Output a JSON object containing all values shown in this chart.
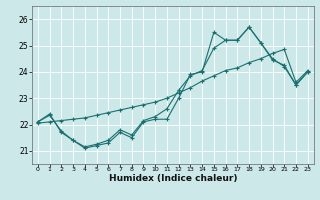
{
  "xlabel": "Humidex (Indice chaleur)",
  "bg_color": "#cce8e8",
  "line_color": "#1a7070",
  "grid_color": "#ffffff",
  "xlim": [
    -0.5,
    23.5
  ],
  "ylim": [
    20.5,
    26.5
  ],
  "yticks": [
    21,
    22,
    23,
    24,
    25,
    26
  ],
  "xticks": [
    0,
    1,
    2,
    3,
    4,
    5,
    6,
    7,
    8,
    9,
    10,
    11,
    12,
    13,
    14,
    15,
    16,
    17,
    18,
    19,
    20,
    21,
    22,
    23
  ],
  "line1_x": [
    0,
    1,
    2,
    3,
    4,
    5,
    6,
    7,
    8,
    9,
    10,
    11,
    12,
    13,
    14,
    15,
    16,
    17,
    18,
    19,
    20,
    21,
    22,
    23
  ],
  "line1_y": [
    22.1,
    22.4,
    21.7,
    21.4,
    21.1,
    21.2,
    21.3,
    21.7,
    21.5,
    22.1,
    22.2,
    22.2,
    23.0,
    23.9,
    24.0,
    25.5,
    25.2,
    25.2,
    25.7,
    25.1,
    24.5,
    24.2,
    23.5,
    24.0
  ],
  "line2_x": [
    0,
    1,
    2,
    3,
    4,
    5,
    6,
    7,
    8,
    9,
    10,
    11,
    12,
    13,
    14,
    15,
    16,
    17,
    18,
    19,
    20,
    21,
    22,
    23
  ],
  "line2_y": [
    22.1,
    22.35,
    21.75,
    21.4,
    21.15,
    21.25,
    21.4,
    21.8,
    21.6,
    22.15,
    22.3,
    22.6,
    23.3,
    23.85,
    24.05,
    24.9,
    25.2,
    25.2,
    25.7,
    25.1,
    24.45,
    24.25,
    23.5,
    24.0
  ],
  "line3_x": [
    0,
    1,
    2,
    3,
    4,
    5,
    6,
    7,
    8,
    9,
    10,
    11,
    12,
    13,
    14,
    15,
    16,
    17,
    18,
    19,
    20,
    21,
    22,
    23
  ],
  "line3_y": [
    22.05,
    22.1,
    22.15,
    22.2,
    22.25,
    22.35,
    22.45,
    22.55,
    22.65,
    22.75,
    22.85,
    23.0,
    23.2,
    23.4,
    23.65,
    23.85,
    24.05,
    24.15,
    24.35,
    24.5,
    24.7,
    24.85,
    23.6,
    24.05
  ]
}
